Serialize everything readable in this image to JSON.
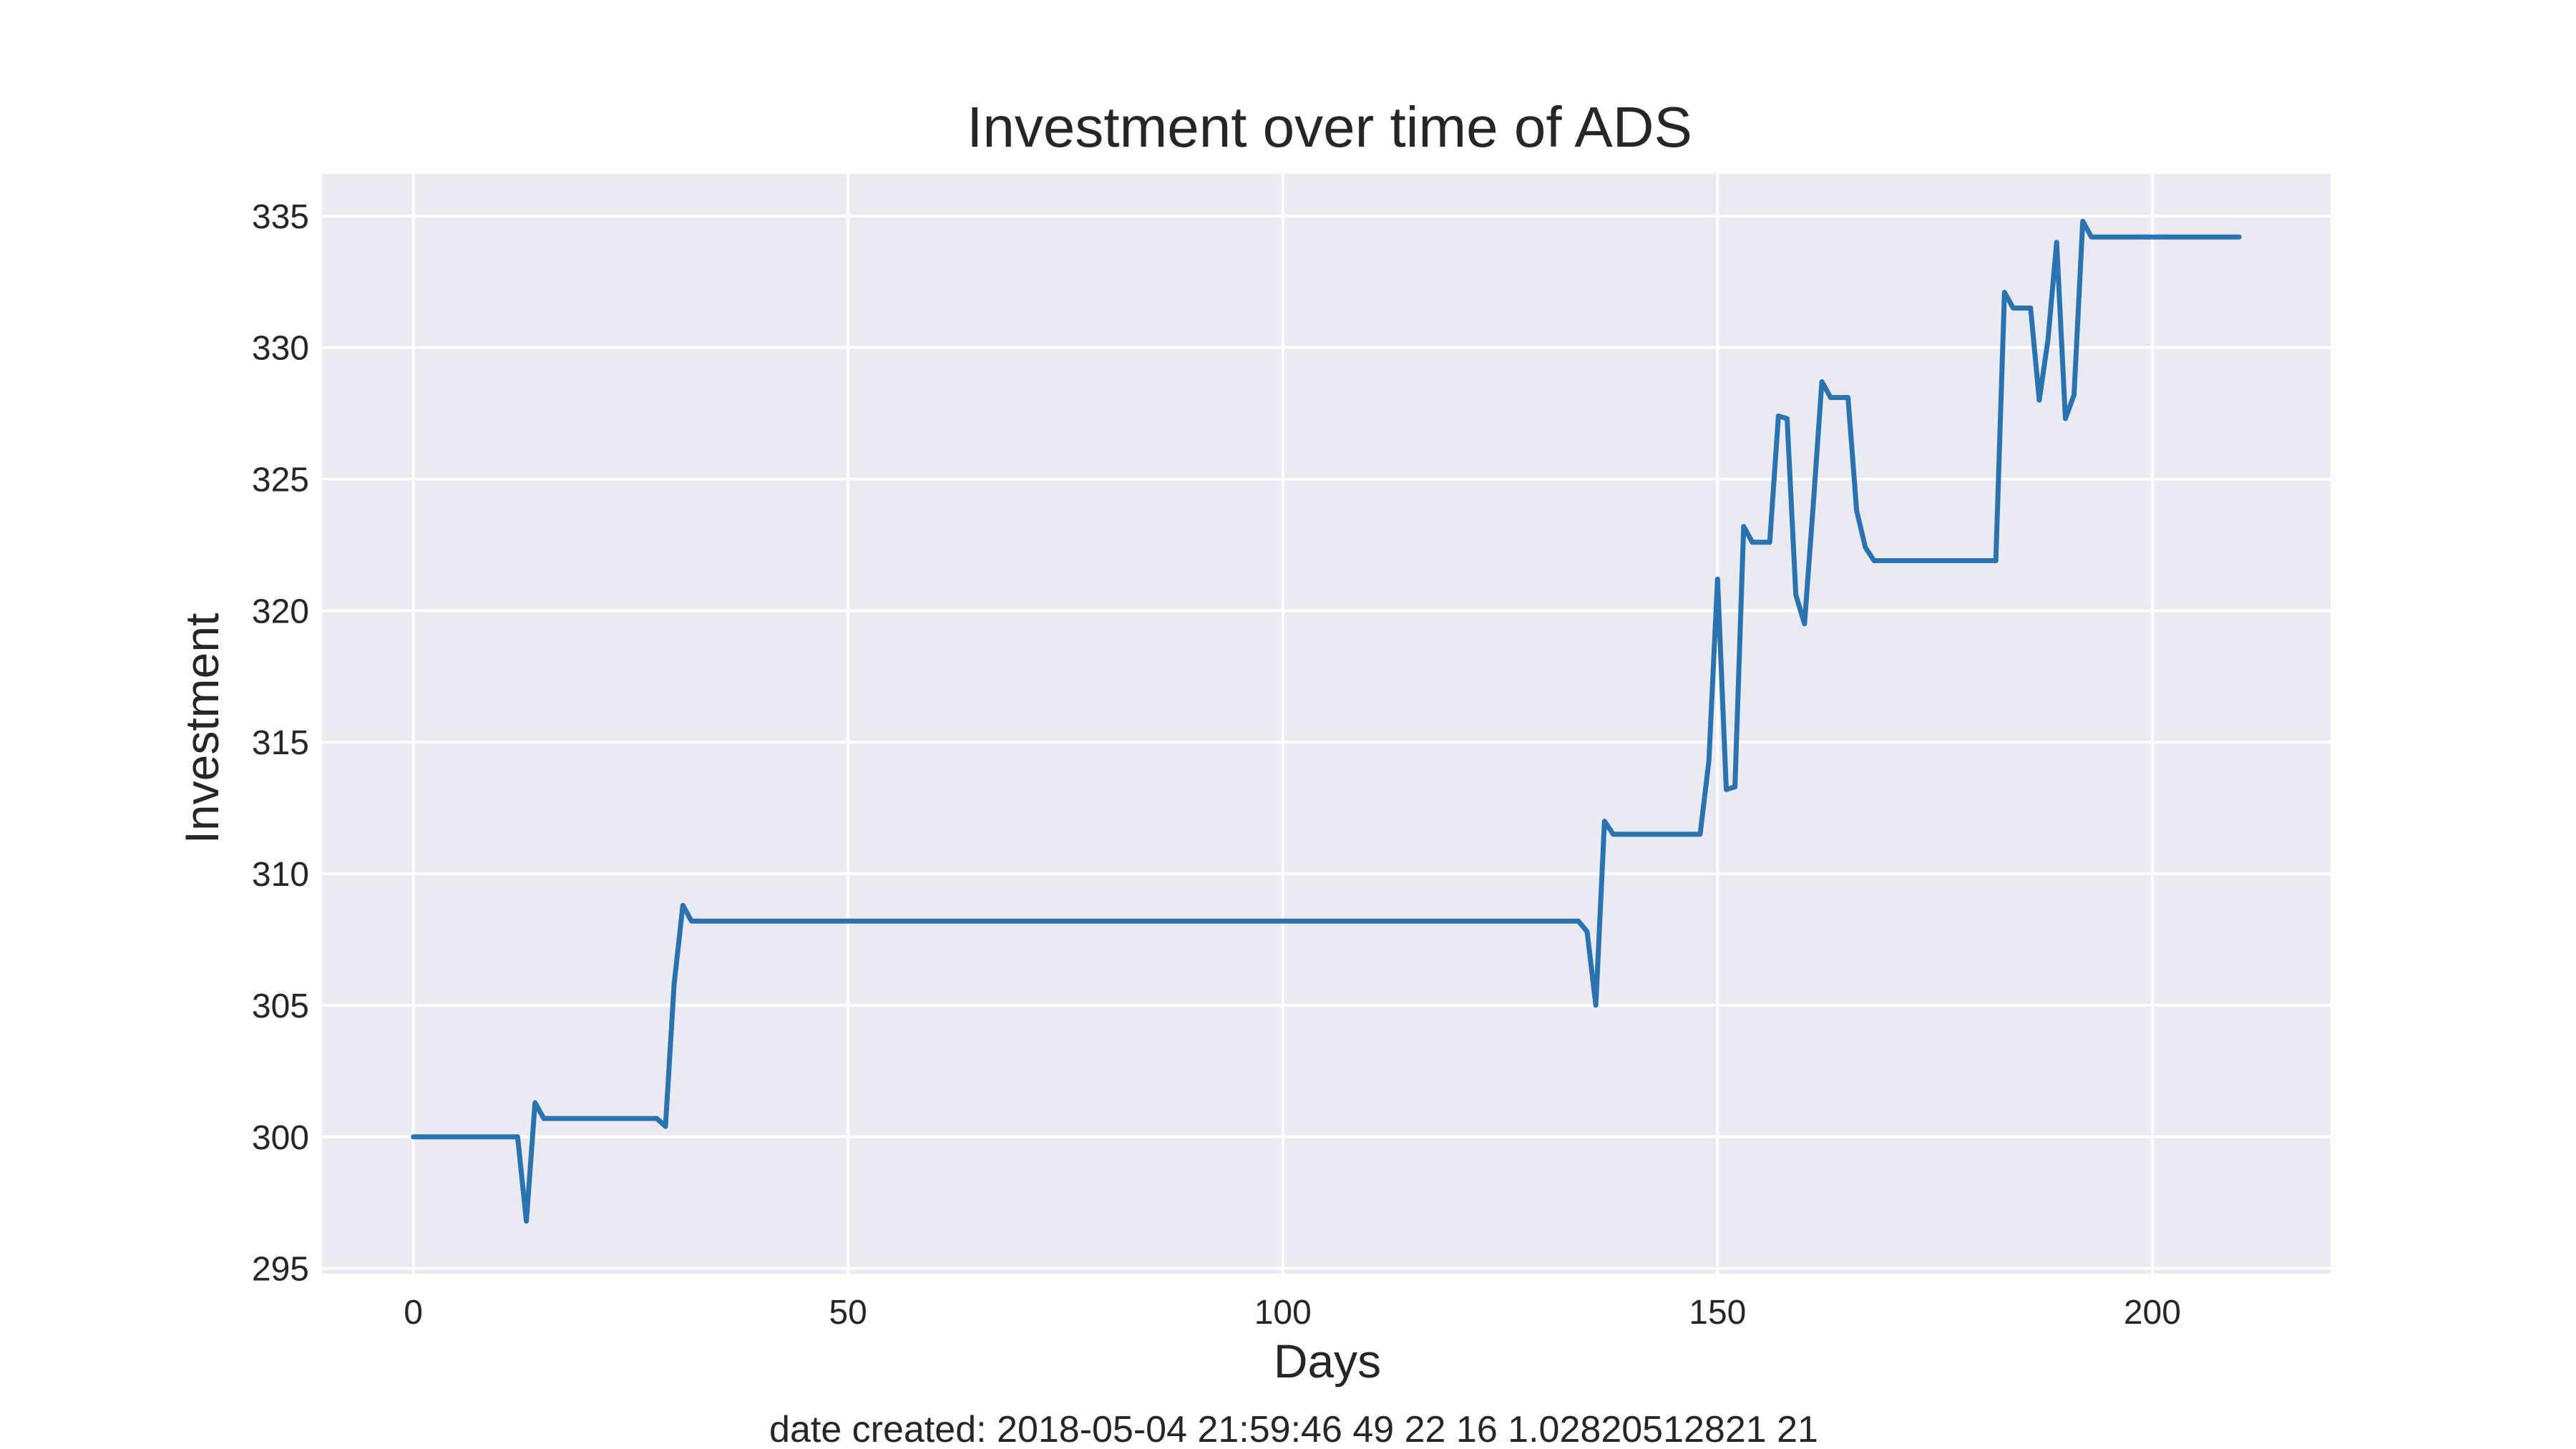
{
  "chart_data": {
    "type": "line",
    "title": "Investment over time of ADS",
    "xlabel": "Days",
    "ylabel": "Investment",
    "xlim": [
      -10.5,
      220.5
    ],
    "ylim": [
      294.8,
      336.6
    ],
    "xticks": [
      0,
      50,
      100,
      150,
      200
    ],
    "yticks": [
      295,
      300,
      305,
      310,
      315,
      320,
      325,
      330,
      335
    ],
    "grid": true,
    "legend": "none",
    "series": [
      {
        "color": "#2b73b0",
        "points": [
          [
            0,
            300.0
          ],
          [
            12,
            300.0
          ],
          [
            13,
            296.8
          ],
          [
            14,
            301.3
          ],
          [
            15,
            300.7
          ],
          [
            28,
            300.7
          ],
          [
            29,
            300.4
          ],
          [
            30,
            305.8
          ],
          [
            31,
            308.8
          ],
          [
            32,
            308.2
          ],
          [
            134,
            308.2
          ],
          [
            135,
            307.8
          ],
          [
            136,
            305.0
          ],
          [
            137,
            312.0
          ],
          [
            138,
            311.5
          ],
          [
            148,
            311.5
          ],
          [
            149,
            314.3
          ],
          [
            150,
            321.2
          ],
          [
            151,
            313.2
          ],
          [
            152,
            313.3
          ],
          [
            153,
            323.2
          ],
          [
            154,
            322.6
          ],
          [
            156,
            322.6
          ],
          [
            157,
            327.4
          ],
          [
            158,
            327.3
          ],
          [
            159,
            320.6
          ],
          [
            160,
            319.5
          ],
          [
            161,
            324.0
          ],
          [
            162,
            328.7
          ],
          [
            163,
            328.1
          ],
          [
            165,
            328.1
          ],
          [
            166,
            323.8
          ],
          [
            167,
            322.4
          ],
          [
            168,
            321.9
          ],
          [
            182,
            321.9
          ],
          [
            183,
            332.1
          ],
          [
            184,
            331.5
          ],
          [
            186,
            331.5
          ],
          [
            187,
            328.0
          ],
          [
            188,
            330.3
          ],
          [
            189,
            334.0
          ],
          [
            190,
            327.3
          ],
          [
            191,
            328.2
          ],
          [
            192,
            334.8
          ],
          [
            193,
            334.2
          ],
          [
            210,
            334.2
          ]
        ]
      }
    ]
  },
  "footer": {
    "text": "date created: 2018-05-04 21:59:46 49 22 16 1.02820512821 21"
  }
}
